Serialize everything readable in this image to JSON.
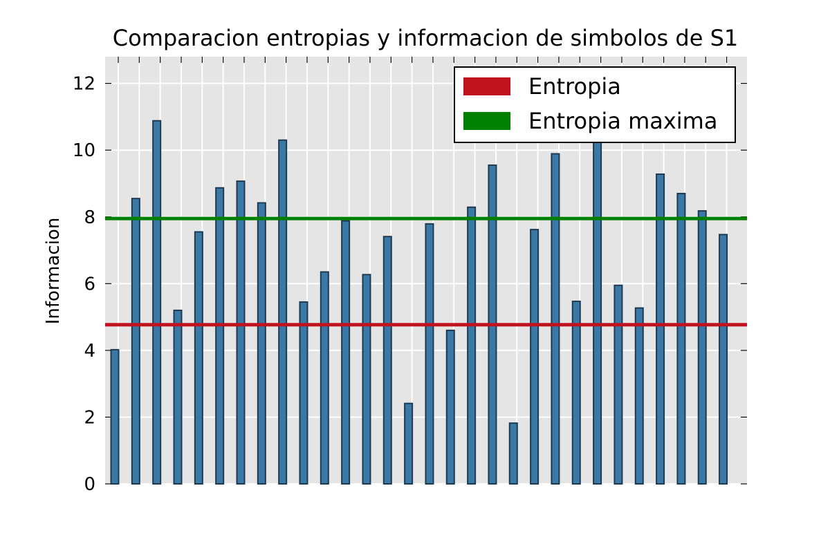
{
  "chart_data": {
    "type": "bar",
    "title": "Comparacion entropias y informacion de simbolos de S1",
    "xlabel": "",
    "ylabel": "Informacion",
    "ylim": [
      0,
      12.8
    ],
    "yticks": [
      0,
      2,
      4,
      6,
      8,
      10,
      12
    ],
    "grid": true,
    "legend_position": "top-right",
    "values": [
      4.02,
      8.55,
      10.88,
      5.2,
      7.55,
      8.87,
      9.07,
      8.42,
      10.3,
      5.45,
      6.35,
      7.88,
      6.27,
      7.41,
      2.41,
      7.79,
      4.6,
      8.29,
      9.55,
      1.82,
      7.62,
      9.89,
      5.47,
      10.3,
      5.95,
      5.27,
      9.28,
      8.7,
      8.18,
      7.47
    ],
    "bar_color": "#3a78a6",
    "bar_edge_color": "#1f3a50",
    "lines": [
      {
        "name": "Entropia",
        "y": 4.77,
        "color": "#c1121f"
      },
      {
        "name": "Entropia maxima",
        "y": 7.95,
        "color": "#008000"
      }
    ]
  }
}
